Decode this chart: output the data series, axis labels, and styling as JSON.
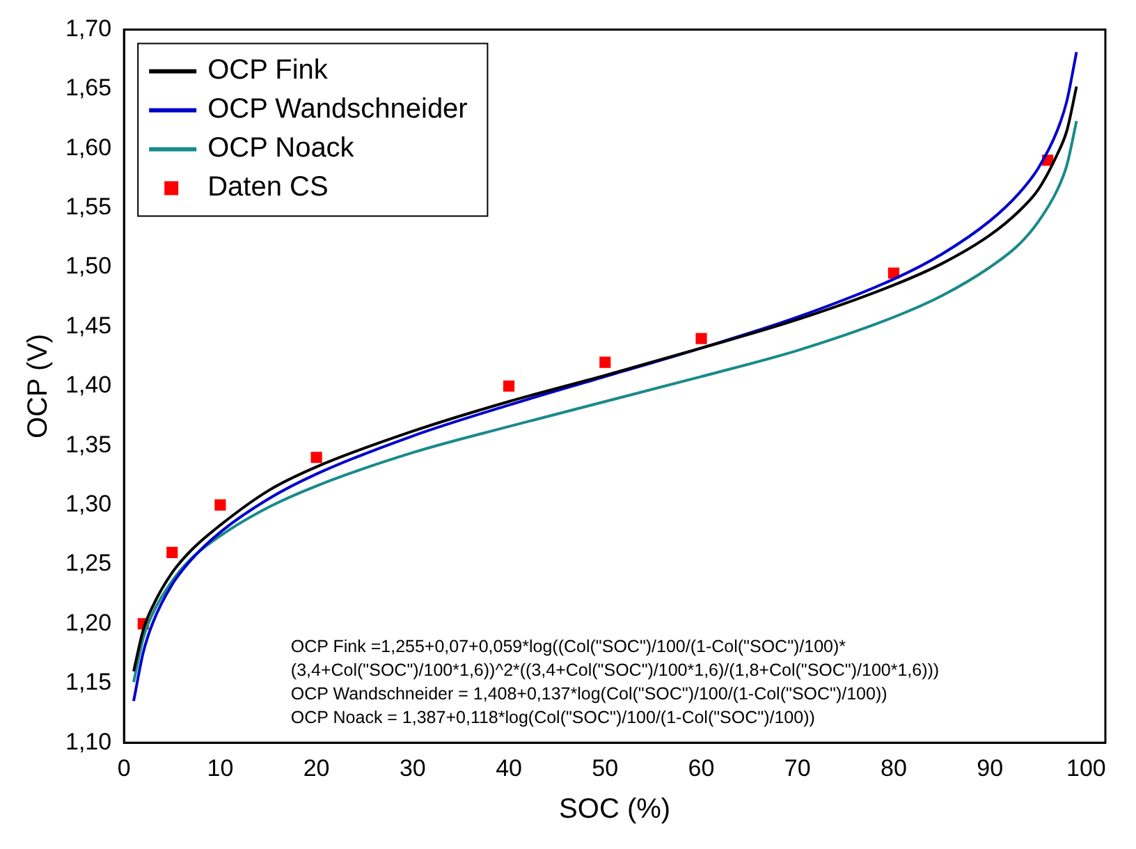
{
  "chart_data": {
    "type": "line",
    "xlabel": "SOC (%)",
    "ylabel": "OCP (V)",
    "xlim": [
      0,
      102
    ],
    "ylim": [
      1.1,
      1.7
    ],
    "xticks": [
      0,
      10,
      20,
      30,
      40,
      50,
      60,
      70,
      80,
      90,
      100
    ],
    "yticks": [
      {
        "value": 1.1,
        "label": "1,10"
      },
      {
        "value": 1.15,
        "label": "1,15"
      },
      {
        "value": 1.2,
        "label": "1,20"
      },
      {
        "value": 1.25,
        "label": "1,25"
      },
      {
        "value": 1.3,
        "label": "1,30"
      },
      {
        "value": 1.35,
        "label": "1,35"
      },
      {
        "value": 1.4,
        "label": "1,40"
      },
      {
        "value": 1.45,
        "label": "1,45"
      },
      {
        "value": 1.5,
        "label": "1,50"
      },
      {
        "value": 1.55,
        "label": "1,55"
      },
      {
        "value": 1.6,
        "label": "1,60"
      },
      {
        "value": 1.65,
        "label": "1,65"
      },
      {
        "value": 1.7,
        "label": "1,70"
      }
    ],
    "grid": false,
    "legend": "top left",
    "line_style": "solid",
    "series": [
      {
        "name": "OCP Fink",
        "color": "#000000",
        "marker": "none",
        "x": [
          1,
          2,
          3,
          5,
          7,
          10,
          15,
          20,
          30,
          40,
          50,
          60,
          70,
          80,
          85,
          90,
          93,
          95,
          97,
          98,
          99
        ],
        "values": [
          1.16,
          1.195,
          1.215,
          1.243,
          1.262,
          1.283,
          1.312,
          1.332,
          1.362,
          1.387,
          1.409,
          1.432,
          1.456,
          1.485,
          1.503,
          1.527,
          1.547,
          1.565,
          1.595,
          1.615,
          1.652
        ]
      },
      {
        "name": "OCP Wandschneider",
        "color": "#0000cc",
        "marker": "none",
        "x": [
          1,
          2,
          3,
          5,
          7,
          10,
          15,
          20,
          30,
          40,
          50,
          60,
          70,
          80,
          85,
          90,
          93,
          95,
          97,
          98,
          99
        ],
        "values": [
          1.135,
          1.176,
          1.201,
          1.233,
          1.254,
          1.277,
          1.305,
          1.326,
          1.358,
          1.384,
          1.408,
          1.432,
          1.458,
          1.49,
          1.511,
          1.539,
          1.562,
          1.583,
          1.615,
          1.64,
          1.681
        ]
      },
      {
        "name": "OCP Noack",
        "color": "#1a8a8a",
        "marker": "none",
        "x": [
          1,
          2,
          3,
          5,
          7,
          10,
          15,
          20,
          30,
          40,
          50,
          60,
          70,
          80,
          85,
          90,
          93,
          95,
          97,
          98,
          99
        ],
        "values": [
          1.151,
          1.188,
          1.209,
          1.236,
          1.255,
          1.274,
          1.298,
          1.316,
          1.344,
          1.366,
          1.387,
          1.408,
          1.43,
          1.458,
          1.476,
          1.5,
          1.519,
          1.538,
          1.565,
          1.586,
          1.623
        ]
      },
      {
        "name": "Daten CS",
        "type": "scatter",
        "color": "#ff0000",
        "marker": "square",
        "x": [
          2,
          5,
          10,
          20,
          40,
          50,
          60,
          80,
          96
        ],
        "values": [
          1.2,
          1.26,
          1.3,
          1.34,
          1.4,
          1.42,
          1.44,
          1.495,
          1.59
        ]
      }
    ],
    "annotations": [
      "OCP Fink =1,255+0,07+0,059*log((Col(\"SOC\")/100/(1-Col(\"SOC\")/100)*",
      "(3,4+Col(\"SOC\")/100*1,6))^2*((3,4+Col(\"SOC\")/100*1,6)/(1,8+Col(\"SOC\")/100*1,6)))",
      "OCP Wandschneider = 1,408+0,137*log(Col(\"SOC\")/100/(1-Col(\"SOC\")/100))",
      "OCP Noack = 1,387+0,118*log(Col(\"SOC\")/100/(1-Col(\"SOC\")/100))"
    ]
  }
}
